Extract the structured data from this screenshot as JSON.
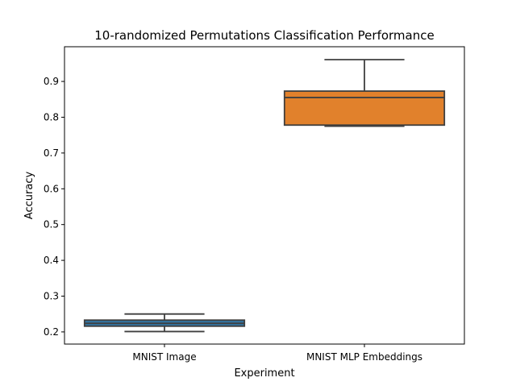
{
  "chart_data": {
    "type": "box",
    "title": "10-randomized Permutations Classification Performance",
    "xlabel": "Experiment",
    "ylabel": "Accuracy",
    "ylim": [
      0.166,
      0.997
    ],
    "yticks": [
      0.2,
      0.3,
      0.4,
      0.5,
      0.6,
      0.7,
      0.8,
      0.9
    ],
    "ytick_labels": [
      "0.2",
      "0.3",
      "0.4",
      "0.5",
      "0.6",
      "0.7",
      "0.8",
      "0.9"
    ],
    "grid": false,
    "categories": [
      "MNIST Image",
      "MNIST MLP Embeddings"
    ],
    "boxes": [
      {
        "category": "MNIST Image",
        "whisker_low": 0.201,
        "q1": 0.216,
        "median": 0.224,
        "q3": 0.233,
        "whisker_high": 0.25,
        "color": "#3274a1"
      },
      {
        "category": "MNIST MLP Embeddings",
        "whisker_low": 0.775,
        "q1": 0.778,
        "median": 0.855,
        "q3": 0.873,
        "whisker_high": 0.961,
        "color": "#e1812c"
      }
    ],
    "line_color": "#3f3f3f"
  }
}
